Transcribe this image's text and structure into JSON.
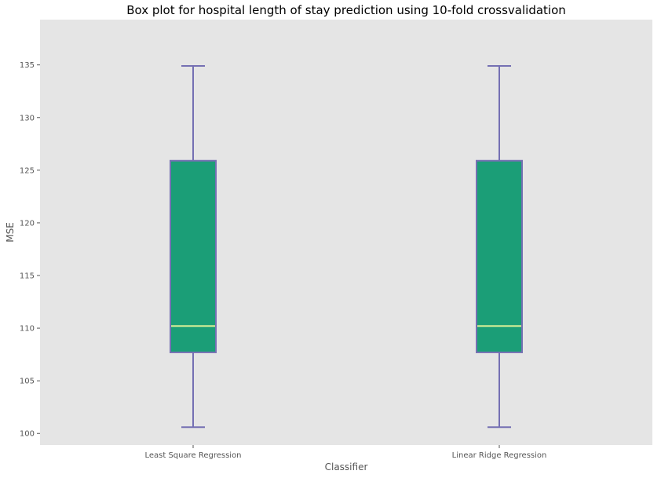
{
  "chart_data": {
    "type": "box",
    "title": "Box plot for hospital length of stay prediction using 10-fold crossvalidation",
    "xlabel": "Classifier",
    "ylabel": "MSE",
    "ylim": [
      98.9,
      139.3
    ],
    "yticks": [
      100,
      105,
      110,
      115,
      120,
      125,
      130,
      135
    ],
    "grid": false,
    "categories": [
      "Least Square Regression",
      "Linear Ridge Regression"
    ],
    "boxes": [
      {
        "category": "Least Square Regression",
        "whisker_low": 100.6,
        "q1": 107.7,
        "median": 110.2,
        "q3": 125.9,
        "whisker_high": 134.9
      },
      {
        "category": "Linear Ridge Regression",
        "whisker_low": 100.6,
        "q1": 107.7,
        "median": 110.2,
        "q3": 125.9,
        "whisker_high": 134.9
      }
    ],
    "colors": {
      "plot_background": "#e5e5e5",
      "box_fill": "#1b9e77",
      "box_edge": "#7570b3",
      "median_line": "#e6f598",
      "text": "#555555"
    }
  }
}
